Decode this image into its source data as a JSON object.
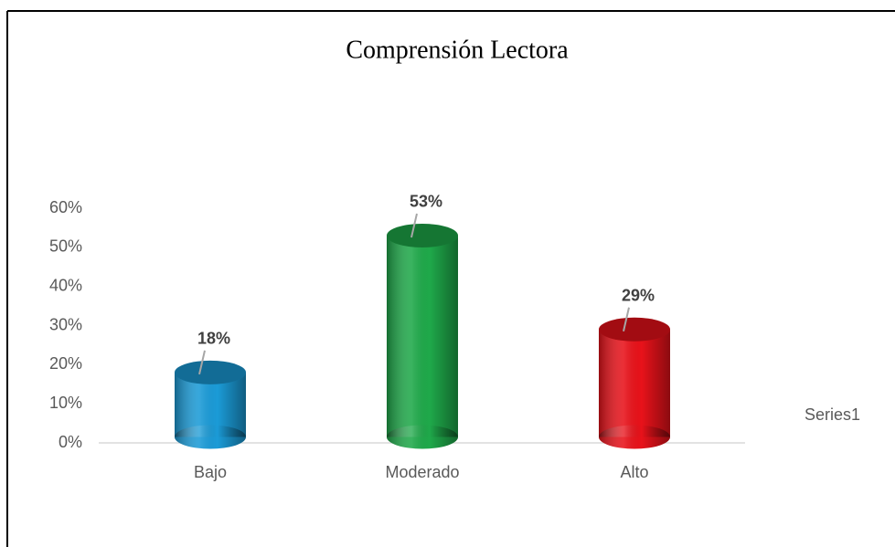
{
  "chart_data": {
    "type": "bar",
    "title": "Comprensión Lectora",
    "categories": [
      "Bajo",
      "Moderado",
      "Alto"
    ],
    "series": [
      {
        "name": "Series1",
        "colors": [
          "#1b9bd7",
          "#1fa94a",
          "#e8121a"
        ],
        "values": [
          18,
          53,
          29
        ],
        "value_labels": [
          "18%",
          "53%",
          "29%"
        ]
      }
    ],
    "ylim": [
      0,
      60
    ],
    "yticks": [
      {
        "value": 0,
        "label": "0%"
      },
      {
        "value": 10,
        "label": "10%"
      },
      {
        "value": 20,
        "label": "20%"
      },
      {
        "value": 30,
        "label": "30%"
      },
      {
        "value": 40,
        "label": "40%"
      },
      {
        "value": 50,
        "label": "50%"
      },
      {
        "value": 60,
        "label": "60%"
      }
    ],
    "grid": false,
    "legend": "right"
  }
}
